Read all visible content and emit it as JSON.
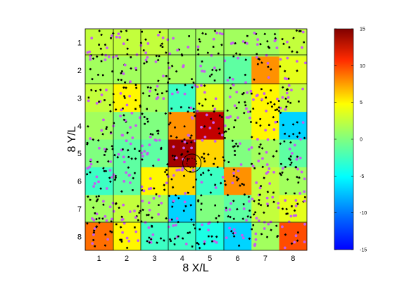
{
  "chart_data": {
    "type": "heatmap",
    "xlabel": "8 X/L",
    "ylabel": "8 Y/L",
    "x_ticks": [
      "1",
      "2",
      "3",
      "4",
      "5",
      "6",
      "7",
      "8"
    ],
    "y_ticks": [
      "1",
      "2",
      "3",
      "4",
      "5",
      "6",
      "7",
      "8"
    ],
    "colorbar": {
      "min": -15,
      "max": 15,
      "ticks": [
        "15",
        "10",
        "5",
        "0",
        "-5",
        "-10",
        "-15"
      ],
      "colormap": "jet"
    },
    "grid": [
      [
        2,
        2,
        2,
        1,
        1,
        1,
        1,
        2
      ],
      [
        1,
        1,
        1,
        1,
        0,
        -1,
        7,
        3
      ],
      [
        2,
        4,
        1,
        -2,
        3,
        1,
        4,
        2
      ],
      [
        1,
        0,
        0,
        7,
        13,
        1,
        4,
        -5
      ],
      [
        0,
        -1,
        -1,
        14,
        5,
        0,
        1,
        -1
      ],
      [
        -2,
        -1,
        4,
        5,
        -2,
        7,
        2,
        1
      ],
      [
        1,
        2,
        1,
        -5,
        0,
        -1,
        2,
        3
      ],
      [
        8,
        4,
        -2,
        -2,
        -3,
        -5,
        1,
        9
      ]
    ],
    "marker": {
      "x": 4.35,
      "y": 5.35,
      "description": "circled point"
    }
  }
}
